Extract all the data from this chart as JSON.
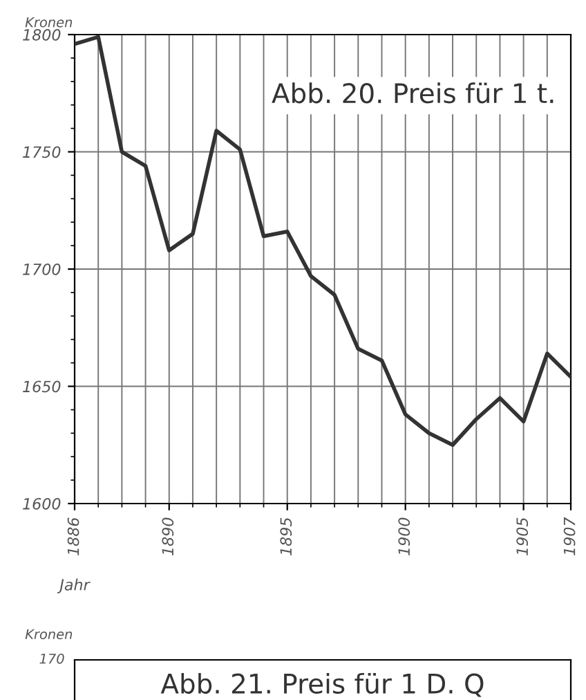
{
  "chart_data": [
    {
      "type": "line",
      "title": "Abb. 20. Preis für 1 t.",
      "ylabel": "Kronen",
      "xlabel": "Jahr",
      "x": [
        1886,
        1887,
        1888,
        1889,
        1890,
        1891,
        1892,
        1893,
        1894,
        1895,
        1896,
        1897,
        1898,
        1899,
        1900,
        1901,
        1902,
        1903,
        1904,
        1905,
        1906,
        1907
      ],
      "series": [
        {
          "type": "line",
          "color": "#333333",
          "values": [
            1796,
            1799,
            1750,
            1744,
            1708,
            1715,
            1759,
            1751,
            1714,
            1716,
            1697,
            1689,
            1666,
            1661,
            1638,
            1630,
            1625,
            1636,
            1645,
            1635,
            1664,
            1654
          ]
        }
      ],
      "xlim": [
        1886,
        1907
      ],
      "xticks": [
        1886,
        1890,
        1895,
        1900,
        1905,
        1907
      ],
      "ylim": [
        1600,
        1800
      ],
      "yticks": [
        1600,
        1650,
        1700,
        1750,
        1800
      ],
      "grid": true,
      "marker": "none",
      "line_style": "solid"
    },
    {
      "type": "other",
      "title": "Abb. 21. Preis für 1 D. Q",
      "ylabel": "Kronen",
      "annotations": [
        "170"
      ]
    }
  ]
}
